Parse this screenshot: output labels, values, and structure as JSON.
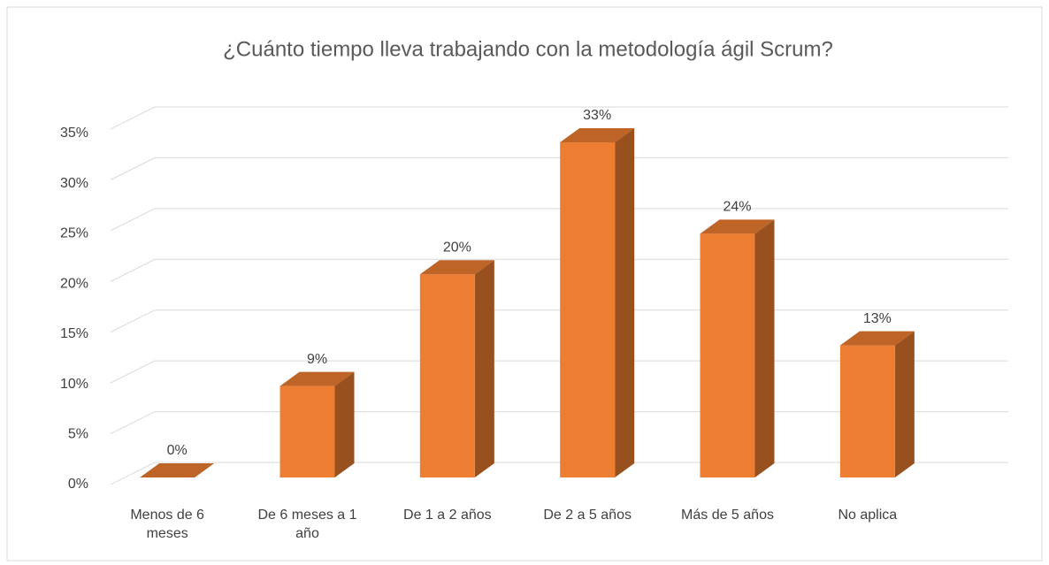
{
  "chart_data": {
    "type": "bar3d",
    "title": "¿Cuánto tiempo lleva trabajando con la metodología ágil Scrum?",
    "categories": [
      "Menos de 6 meses",
      "De 6 meses a 1 año",
      "De 1 a 2 años",
      "De 2 a 5 años",
      "Más de 5 años",
      "No aplica"
    ],
    "values": [
      0,
      9,
      20,
      33,
      24,
      13
    ],
    "value_labels": [
      "0%",
      "9%",
      "20%",
      "33%",
      "24%",
      "13%"
    ],
    "color": "#ed7d31",
    "ylim": [
      0,
      35
    ],
    "yticks": [
      {
        "value": 0,
        "label": "0%"
      },
      {
        "value": 5,
        "label": "5%"
      },
      {
        "value": 10,
        "label": "10%"
      },
      {
        "value": 15,
        "label": "15%"
      },
      {
        "value": 20,
        "label": "20%"
      },
      {
        "value": 25,
        "label": "25%"
      },
      {
        "value": 30,
        "label": "30%"
      },
      {
        "value": 35,
        "label": "35%"
      }
    ],
    "grid": true
  }
}
